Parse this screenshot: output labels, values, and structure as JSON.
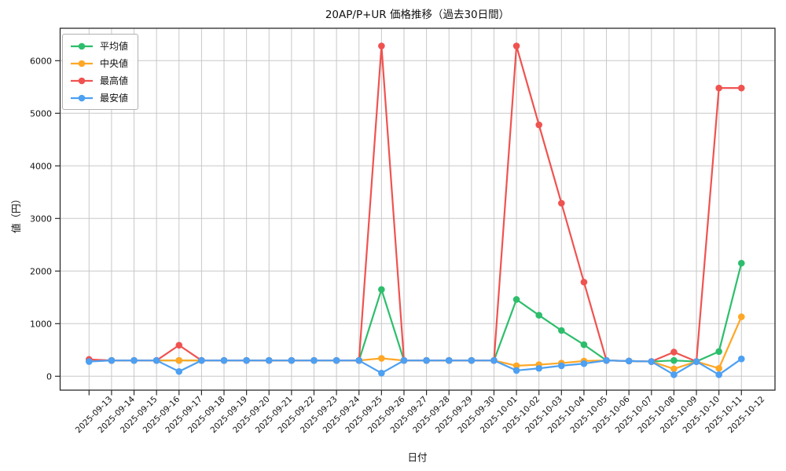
{
  "chart_data": {
    "type": "line",
    "title": "20AP/P+UR 価格推移（過去30日間）",
    "xlabel": "日付",
    "ylabel": "値（円）",
    "grid": true,
    "grid_color": "#c8c8c8",
    "background": "#ffffff",
    "legend_position": "upper left",
    "ylim": [
      -290,
      6600
    ],
    "yticks": [
      0,
      1000,
      2000,
      3000,
      4000,
      5000,
      6000
    ],
    "categories": [
      "2025-09-13",
      "2025-09-14",
      "2025-09-15",
      "2025-09-16",
      "2025-09-17",
      "2025-09-18",
      "2025-09-19",
      "2025-09-20",
      "2025-09-21",
      "2025-09-22",
      "2025-09-23",
      "2025-09-24",
      "2025-09-25",
      "2025-09-26",
      "2025-09-27",
      "2025-09-28",
      "2025-09-29",
      "2025-09-30",
      "2025-10-01",
      "2025-10-02",
      "2025-10-03",
      "2025-10-04",
      "2025-10-05",
      "2025-10-06",
      "2025-10-07",
      "2025-10-08",
      "2025-10-09",
      "2025-10-10",
      "2025-10-11",
      "2025-10-12"
    ],
    "series": [
      {
        "key": "average",
        "name": "平均値",
        "color": "#2dbe6c",
        "values": [
          290,
          300,
          300,
          300,
          300,
          300,
          300,
          300,
          300,
          300,
          300,
          300,
          300,
          1650,
          300,
          300,
          300,
          300,
          300,
          1460,
          1160,
          870,
          600,
          300,
          290,
          280,
          300,
          280,
          470,
          2150
        ]
      },
      {
        "key": "median",
        "name": "中央値",
        "color": "#ffa726",
        "values": [
          290,
          300,
          300,
          300,
          300,
          300,
          300,
          300,
          300,
          300,
          300,
          300,
          300,
          340,
          300,
          300,
          300,
          300,
          300,
          200,
          220,
          250,
          290,
          300,
          290,
          280,
          140,
          280,
          150,
          1130
        ]
      },
      {
        "key": "highest",
        "name": "最高値",
        "color": "#ef5350",
        "values": [
          320,
          300,
          300,
          300,
          590,
          300,
          300,
          300,
          300,
          300,
          300,
          300,
          300,
          6280,
          300,
          300,
          300,
          300,
          300,
          6280,
          4780,
          3290,
          1790,
          300,
          290,
          280,
          460,
          280,
          5480,
          5480
        ]
      },
      {
        "key": "lowest",
        "name": "最安値",
        "color": "#4da0f2",
        "values": [
          280,
          300,
          300,
          300,
          90,
          300,
          300,
          300,
          300,
          300,
          300,
          300,
          300,
          60,
          300,
          300,
          300,
          300,
          300,
          110,
          150,
          200,
          240,
          300,
          290,
          280,
          30,
          280,
          30,
          330
        ]
      }
    ]
  }
}
